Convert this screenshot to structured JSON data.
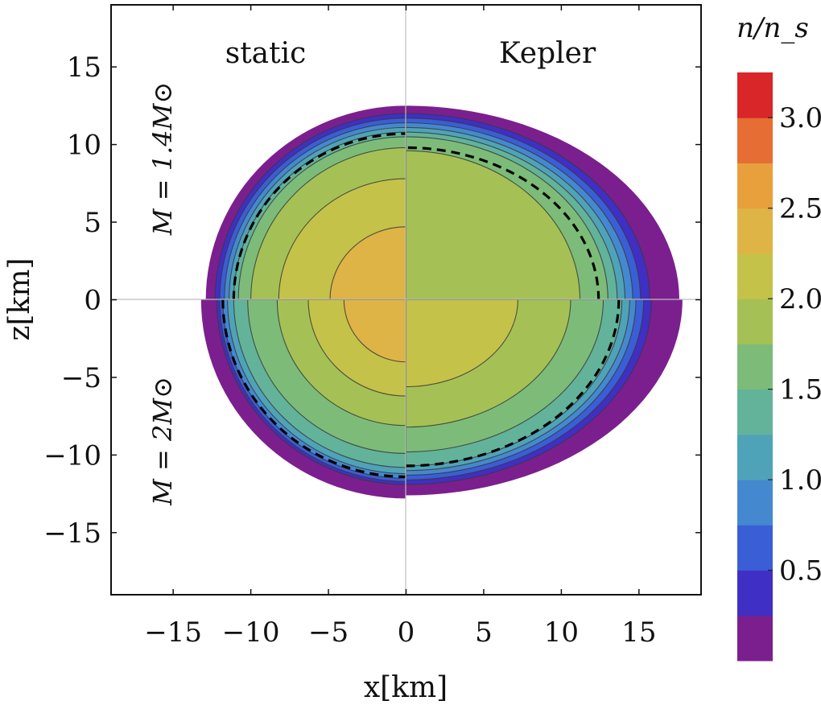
{
  "chart_data": {
    "type": "heatmap",
    "title": "",
    "xlabel": "x[km]",
    "ylabel": "z[km]",
    "xlim": [
      -19,
      19
    ],
    "ylim": [
      -19,
      19
    ],
    "xticks": [
      -15,
      -10,
      -5,
      0,
      5,
      10,
      15
    ],
    "yticks": [
      15,
      10,
      5,
      0,
      -5,
      -10,
      -15
    ],
    "xtick_labels": [
      "−15",
      "−10",
      "−5",
      "0",
      "5",
      "10",
      "15"
    ],
    "ytick_labels": [
      "15",
      "10",
      "5",
      "0",
      "−5",
      "−10",
      "−15"
    ],
    "panel_labels": {
      "static": "static",
      "kepler": "Kepler"
    },
    "mass_labels": {
      "top": "M = 1.4M⊙",
      "bottom": "M = 2M⊙"
    },
    "colorbar": {
      "title": "n/n_s",
      "levels": [
        0,
        0.25,
        0.5,
        0.75,
        1.0,
        1.25,
        1.5,
        1.75,
        2.0,
        2.25,
        2.5,
        2.75,
        3.0,
        3.25
      ],
      "colors": [
        "#7b1f8e",
        "#3f2fc4",
        "#3a5ed6",
        "#4489cf",
        "#4fa3b8",
        "#62b39a",
        "#7cbc78",
        "#a5c155",
        "#c5c24a",
        "#ddb445",
        "#e8a03d",
        "#e66d34",
        "#d92628"
      ],
      "tick_values": [
        0.5,
        1.0,
        1.5,
        2.0,
        2.5,
        3.0
      ],
      "tick_labels": [
        "0.5",
        "1.0",
        "1.5",
        "2.0",
        "2.5",
        "3.0"
      ]
    },
    "series": [
      {
        "name": "static, M=1.4 (top-left)",
        "quadrant": "top-left",
        "radii_x": [
          12.9,
          12.3,
          12.0,
          11.7,
          11.4,
          11.1,
          10.8,
          10.0,
          8.2,
          4.9
        ],
        "radii_z": [
          12.5,
          12.0,
          11.7,
          11.4,
          11.1,
          10.8,
          10.5,
          9.8,
          7.8,
          4.7
        ],
        "dashed_radius": [
          11.1,
          10.7
        ]
      },
      {
        "name": "Kepler, M=1.4 (top-right)",
        "quadrant": "top-right",
        "radii_x": [
          17.6,
          15.7,
          15.1,
          14.6,
          14.1,
          13.6,
          13.0,
          11.2
        ],
        "radii_z": [
          12.5,
          12.0,
          11.7,
          11.4,
          11.1,
          10.8,
          10.5,
          9.6
        ],
        "dashed_radius": [
          12.4,
          9.8
        ]
      },
      {
        "name": "static, M=2 (bottom-left)",
        "quadrant": "bottom-left",
        "radii_x": [
          13.2,
          12.2,
          12.0,
          11.8,
          11.5,
          11.1,
          10.2,
          8.3,
          6.3,
          4.0
        ],
        "radii_z": [
          12.8,
          11.9,
          11.7,
          11.5,
          11.2,
          10.8,
          9.9,
          8.1,
          6.2,
          4.0
        ],
        "dashed_radius": [
          11.8,
          11.4
        ]
      },
      {
        "name": "Kepler, M=2 (bottom-right)",
        "quadrant": "bottom-right",
        "radii_x": [
          17.8,
          15.8,
          15.3,
          14.8,
          14.4,
          13.9,
          12.7,
          10.6,
          7.2
        ],
        "radii_z": [
          12.6,
          11.9,
          11.6,
          11.3,
          11.0,
          10.7,
          9.8,
          8.2,
          5.6
        ],
        "dashed_radius": [
          13.7,
          10.7
        ]
      }
    ]
  }
}
